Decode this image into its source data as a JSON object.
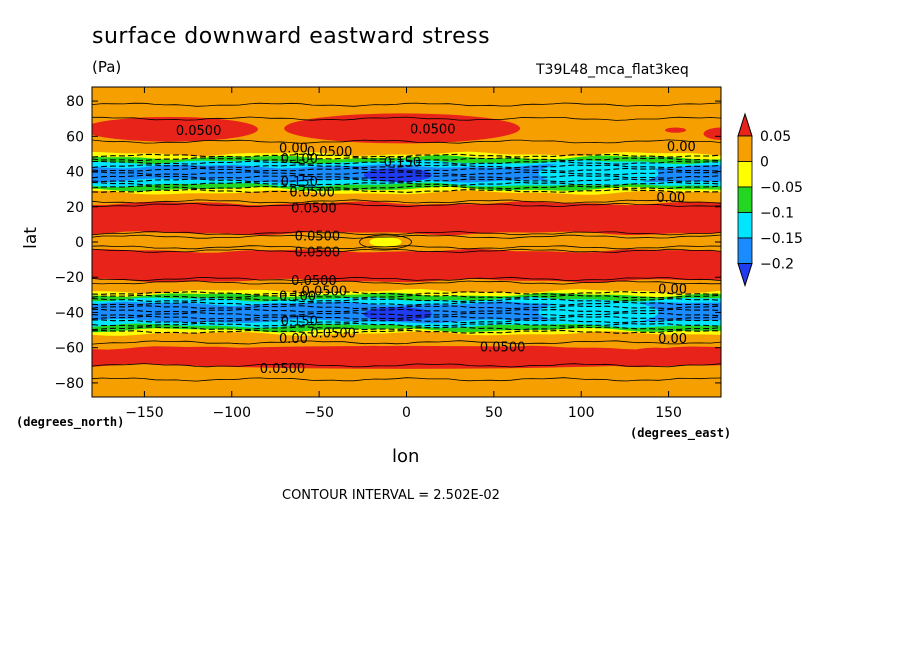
{
  "chart_data": {
    "type": "heatmap",
    "title": "surface downward eastward stress",
    "units": "(Pa)",
    "run_label": "T39L48_mca_flat3keq",
    "xlabel": "lon",
    "ylabel": "lat",
    "x_units_label": "(degrees_east)",
    "y_units_label": "(degrees_north)",
    "xlim": [
      -180,
      180
    ],
    "ylim": [
      -88,
      88
    ],
    "x_ticks": [
      -150,
      -100,
      -50,
      0,
      50,
      100,
      150
    ],
    "x_tick_labels": [
      "−150",
      "−100",
      "−50",
      "0",
      "50",
      "100",
      "150"
    ],
    "y_ticks": [
      -80,
      -60,
      -40,
      -20,
      0,
      20,
      40,
      60,
      80
    ],
    "y_tick_labels": [
      "−80",
      "−60",
      "−40",
      "−20",
      "0",
      "20",
      "40",
      "60",
      "80"
    ],
    "contour_interval_text": "CONTOUR INTERVAL = 2.502E-02",
    "colorbar": {
      "levels": [
        0.05,
        0,
        -0.05,
        -0.1,
        -0.15,
        -0.2
      ],
      "level_labels": [
        "0.05",
        "0",
        "−0.05",
        "−0.1",
        "−0.15",
        "−0.2"
      ],
      "colors": [
        "#e8231a",
        "#f5a000",
        "#ffff00",
        "#22d622",
        "#00e6ff",
        "#1a8cff",
        "#1f3cf0"
      ]
    },
    "colors": {
      "above_005": "#e8231a",
      "0_to_005": "#f5a000",
      "m005_to_0": "#ffff00",
      "m01_to_m005": "#22d622",
      "m015_to_m01": "#00e6ff",
      "m02_to_m015": "#1a8cff",
      "below_m02": "#1f3cf0"
    },
    "zonal_bands": [
      {
        "lat_from": 88,
        "lat_to": 70,
        "value_range": "0 to 0.05"
      },
      {
        "lat_from": 70,
        "lat_to": 58,
        "value_range": "above 0.05"
      },
      {
        "lat_from": 58,
        "lat_to": 50,
        "value_range": "0 to 0.05"
      },
      {
        "lat_from": 50,
        "lat_to": 28,
        "value_range": "-0.2 to 0"
      },
      {
        "lat_from": 28,
        "lat_to": 22,
        "value_range": "0 to 0.05"
      },
      {
        "lat_from": 22,
        "lat_to": 5,
        "value_range": "above 0.05"
      },
      {
        "lat_from": 5,
        "lat_to": -5,
        "value_range": "0 to 0.05"
      },
      {
        "lat_from": -5,
        "lat_to": -22,
        "value_range": "above 0.05"
      },
      {
        "lat_from": -22,
        "lat_to": -28,
        "value_range": "0 to 0.05"
      },
      {
        "lat_from": -28,
        "lat_to": -52,
        "value_range": "-0.2 to 0"
      },
      {
        "lat_from": -52,
        "lat_to": -60,
        "value_range": "0 to 0.05"
      },
      {
        "lat_from": -60,
        "lat_to": -70,
        "value_range": "above 0.05"
      },
      {
        "lat_from": -70,
        "lat_to": -88,
        "value_range": "0 to 0.05"
      }
    ],
    "contour_labels": [
      {
        "text": "0.0500",
        "lon": -132,
        "lat": 63
      },
      {
        "text": "0.0500",
        "lon": 2,
        "lat": 64
      },
      {
        "text": "0.00",
        "lon": -73,
        "lat": 53
      },
      {
        "text": "0.0500",
        "lon": -57,
        "lat": 51
      },
      {
        "text": "0.100",
        "lon": -72,
        "lat": 47
      },
      {
        "text": "0.150",
        "lon": -13,
        "lat": 45
      },
      {
        "text": "0.00",
        "lon": 149,
        "lat": 54
      },
      {
        "text": "0.150",
        "lon": -72,
        "lat": 34
      },
      {
        "text": "0.0500",
        "lon": -67,
        "lat": 28
      },
      {
        "text": "0.0500",
        "lon": -66,
        "lat": 19
      },
      {
        "text": "0.00",
        "lon": 143,
        "lat": 25
      },
      {
        "text": "0.0500",
        "lon": -64,
        "lat": 3
      },
      {
        "text": "0.0500",
        "lon": -64,
        "lat": -6
      },
      {
        "text": "0.0500",
        "lon": -66,
        "lat": -22
      },
      {
        "text": "0.0500",
        "lon": -60,
        "lat": -28
      },
      {
        "text": "0.100",
        "lon": -73,
        "lat": -31
      },
      {
        "text": "0.00",
        "lon": 144,
        "lat": -27
      },
      {
        "text": "0.150",
        "lon": -72,
        "lat": -45
      },
      {
        "text": "0.00",
        "lon": -73,
        "lat": -55
      },
      {
        "text": "0.0500",
        "lon": -55,
        "lat": -52
      },
      {
        "text": "0.0500",
        "lon": 42,
        "lat": -60
      },
      {
        "text": "0.00",
        "lon": 144,
        "lat": -55
      },
      {
        "text": "0.0500",
        "lon": -84,
        "lat": -72
      }
    ]
  }
}
